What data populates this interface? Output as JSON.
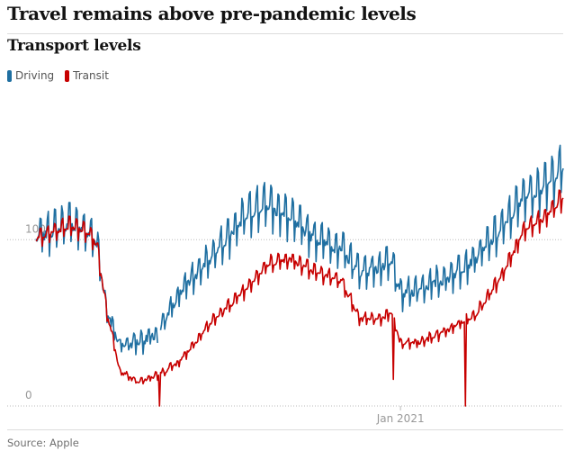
{
  "header": {
    "headline": "Travel remains above pre-pandemic levels",
    "subtitle": "Transport levels"
  },
  "footer": {
    "source": "Source: Apple"
  },
  "colors": {
    "driving": "#1f6fa1",
    "transit": "#c70000",
    "gridline": "#bbbbbb",
    "tick_text": "#999999"
  },
  "chart_data": {
    "type": "line",
    "title": "Transport levels",
    "xlabel": "",
    "ylabel": "",
    "x_start": "2020-01-13",
    "x_end": "2021-06-08",
    "x_ticks": [
      {
        "date": "2021-01-01",
        "label": "Jan 2021"
      }
    ],
    "y_ticks": [
      0,
      100
    ],
    "ylim": [
      0,
      190
    ],
    "grid": true,
    "legend_position": "top-left",
    "series": [
      {
        "name": "Driving",
        "color": "#1f6fa1",
        "points": [
          [
            "2020-01-13",
            100
          ],
          [
            "2020-02-15",
            109
          ],
          [
            "2020-03-01",
            104
          ],
          [
            "2020-03-12",
            98
          ],
          [
            "2020-03-22",
            55
          ],
          [
            "2020-04-04",
            36
          ],
          [
            "2020-04-20",
            38
          ],
          [
            "2020-05-10",
            42
          ],
          [
            "2020-06-01",
            68
          ],
          [
            "2020-07-01",
            88
          ],
          [
            "2020-08-05",
            115
          ],
          [
            "2020-08-25",
            120
          ],
          [
            "2020-09-15",
            112
          ],
          [
            "2020-10-10",
            100
          ],
          [
            "2020-11-05",
            93
          ],
          [
            "2020-11-22",
            80
          ],
          [
            "2020-12-10",
            82
          ],
          [
            "2020-12-24",
            85
          ],
          [
            "2021-01-01",
            66
          ],
          [
            "2021-01-20",
            70
          ],
          [
            "2021-02-15",
            76
          ],
          [
            "2021-03-15",
            88
          ],
          [
            "2021-04-10",
            106
          ],
          [
            "2021-05-01",
            125
          ],
          [
            "2021-05-20",
            130
          ],
          [
            "2021-06-08",
            142
          ]
        ]
      },
      {
        "name": "Transit",
        "color": "#c70000",
        "points": [
          [
            "2020-01-13",
            100
          ],
          [
            "2020-02-15",
            108
          ],
          [
            "2020-03-01",
            105
          ],
          [
            "2020-03-12",
            97
          ],
          [
            "2020-03-22",
            55
          ],
          [
            "2020-04-04",
            20
          ],
          [
            "2020-04-20",
            15
          ],
          [
            "2020-05-10",
            18
          ],
          [
            "2020-06-01",
            27
          ],
          [
            "2020-07-01",
            50
          ],
          [
            "2020-08-05",
            70
          ],
          [
            "2020-08-25",
            85
          ],
          [
            "2020-09-15",
            88
          ],
          [
            "2020-10-10",
            80
          ],
          [
            "2020-11-05",
            75
          ],
          [
            "2020-11-22",
            52
          ],
          [
            "2020-12-10",
            52
          ],
          [
            "2020-12-24",
            55
          ],
          [
            "2021-01-01",
            37
          ],
          [
            "2021-01-20",
            38
          ],
          [
            "2021-02-15",
            45
          ],
          [
            "2021-03-15",
            55
          ],
          [
            "2021-04-10",
            78
          ],
          [
            "2021-05-01",
            105
          ],
          [
            "2021-05-20",
            112
          ],
          [
            "2021-06-08",
            125
          ]
        ]
      }
    ]
  }
}
